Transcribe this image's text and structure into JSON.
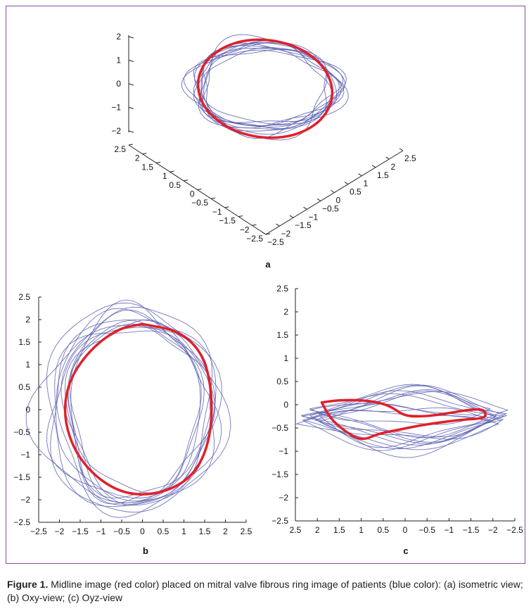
{
  "caption": {
    "label": "Figure 1.",
    "text": "Midline image (red color) placed on mitral valve fibrous ring image of patients (blue color): (a) isometric view; (b) Oxy-view; (c) Oyz-view"
  },
  "colors": {
    "patients": "#5a5fb0",
    "midline": "#e0202a",
    "frame": "#8a4b9c"
  },
  "chart_data": [
    {
      "id": "a",
      "panel_label": "a",
      "type": "line",
      "view": "isometric 3D",
      "series": [
        {
          "role": "patients",
          "color": "#5a5fb0",
          "count": 12
        },
        {
          "role": "midline",
          "color": "#e0202a"
        }
      ],
      "z_ticks": [
        "2",
        "1",
        "0",
        "−1",
        "−2"
      ],
      "x_ticks": [
        "2.5",
        "2",
        "1.5",
        "1",
        "0.5",
        "0",
        "−0.5",
        "−1",
        "−1.5",
        "−2",
        "−2.5"
      ],
      "y_ticks": [
        "−2.5",
        "−2",
        "−1.5",
        "−1",
        "−0.5",
        "0",
        "0.5",
        "1",
        "1.5",
        "2",
        "2.5"
      ],
      "zlim": [
        -2,
        2
      ],
      "xlim": [
        -2.5,
        2.5
      ],
      "ylim": [
        -2.5,
        2.5
      ],
      "grid": false
    },
    {
      "id": "b",
      "panel_label": "b",
      "type": "line",
      "series": [
        {
          "role": "patients",
          "color": "#5a5fb0",
          "count": 12
        },
        {
          "role": "midline",
          "color": "#e0202a",
          "x": [
            0.0,
            0.9,
            1.5,
            1.7,
            1.6,
            1.2,
            0.5,
            -0.3,
            -1.0,
            -1.6,
            -1.9,
            -1.8,
            -1.3,
            -0.6,
            0.0
          ],
          "y": [
            1.9,
            1.75,
            1.2,
            0.2,
            -0.8,
            -1.5,
            -1.85,
            -1.9,
            -1.6,
            -1.0,
            -0.2,
            0.6,
            1.3,
            1.8,
            1.9
          ]
        }
      ],
      "x_ticks": [
        "−2.5",
        "−2",
        "−1.5",
        "−1",
        "−0.5",
        "0",
        "0.5",
        "1",
        "1.5",
        "2",
        "2.5"
      ],
      "y_ticks": [
        "2.5",
        "2",
        "1.5",
        "1",
        "0.5",
        "0",
        "−0.5",
        "−1",
        "−1.5",
        "−2",
        "−2.5"
      ],
      "xlim": [
        -2.5,
        2.5
      ],
      "ylim": [
        -2.5,
        2.5
      ],
      "grid": false
    },
    {
      "id": "c",
      "panel_label": "c",
      "type": "line",
      "series": [
        {
          "role": "patients",
          "color": "#5a5fb0",
          "count": 12
        },
        {
          "role": "midline",
          "color": "#e0202a",
          "x": [
            1.9,
            1.5,
            1.0,
            0.6,
            0.3,
            0.0,
            -0.5,
            -1.0,
            -1.5,
            -1.8,
            -1.85,
            -1.7,
            -1.3,
            -0.8,
            -0.3,
            0.2,
            0.6,
            1.0,
            1.4,
            1.7,
            1.9
          ],
          "y": [
            0.05,
            0.1,
            0.1,
            0.05,
            -0.05,
            -0.25,
            -0.25,
            -0.18,
            -0.1,
            -0.1,
            -0.25,
            -0.3,
            -0.32,
            -0.38,
            -0.45,
            -0.55,
            -0.62,
            -0.78,
            -0.55,
            -0.3,
            0.05
          ]
        }
      ],
      "x_ticks": [
        "2.5",
        "2",
        "1.5",
        "1",
        "0.5",
        "0",
        "−0.5",
        "−1",
        "−1.5",
        "−2",
        "−2.5"
      ],
      "y_ticks": [
        "2.5",
        "2",
        "1.5",
        "1",
        "0.5",
        "0",
        "−0.5",
        "−1",
        "−1.5",
        "−2",
        "−2.5"
      ],
      "xlim": [
        2.5,
        -2.5
      ],
      "ylim": [
        -2.5,
        2.5
      ],
      "grid": false
    }
  ]
}
